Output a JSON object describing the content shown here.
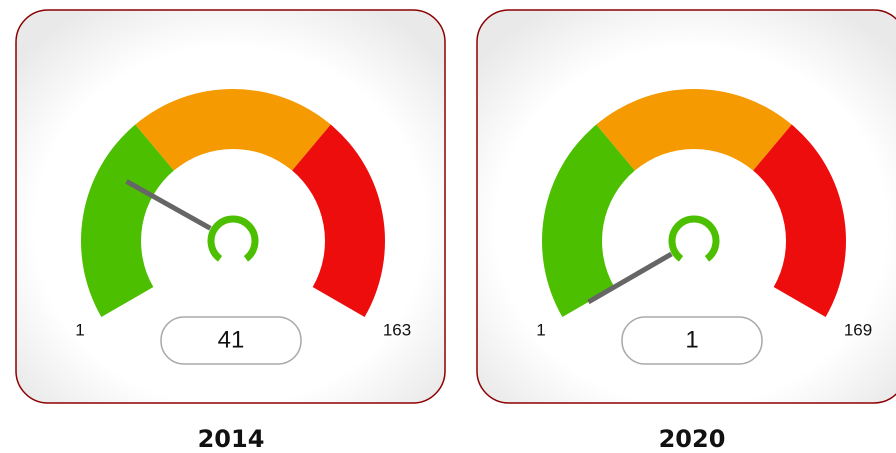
{
  "chart_data": [
    {
      "type": "gauge",
      "title": "2014",
      "ylim": [
        1,
        163
      ],
      "value": 41,
      "band_colors": [
        "#4cbf00",
        "#f59a00",
        "#ee0d0d"
      ],
      "needle_color": "#666666"
    },
    {
      "type": "gauge",
      "title": "2020",
      "ylim": [
        1,
        169
      ],
      "value": 1,
      "band_colors": [
        "#4cbf00",
        "#f59a00",
        "#ee0d0d"
      ],
      "needle_color": "#666666"
    }
  ]
}
